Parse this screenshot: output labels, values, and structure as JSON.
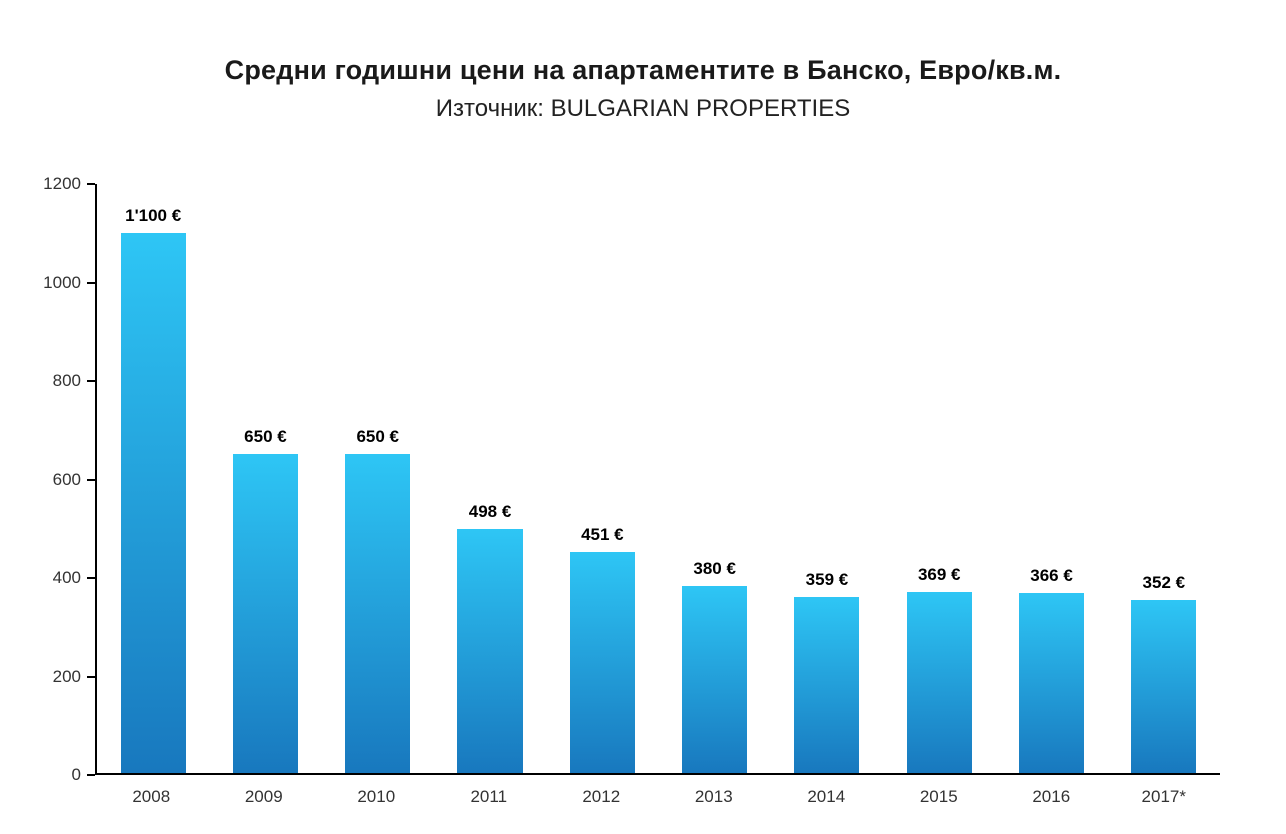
{
  "chart_data": {
    "type": "bar",
    "title": "Средни годишни цени на апартаментите в Банско, Евро/кв.м.",
    "subtitle": "Източник: BULGARIAN PROPERTIES",
    "categories": [
      "2008",
      "2009",
      "2010",
      "2011",
      "2012",
      "2013",
      "2014",
      "2015",
      "2016",
      "2017*"
    ],
    "values": [
      1100,
      650,
      650,
      498,
      451,
      380,
      359,
      369,
      366,
      352
    ],
    "value_labels": [
      "1'100 €",
      "650 €",
      "650 €",
      "498 €",
      "451 €",
      "380 €",
      "359 €",
      "369 €",
      "366 €",
      "352 €"
    ],
    "xlabel": "",
    "ylabel": "",
    "ylim": [
      0,
      1200
    ],
    "yticks": [
      0,
      200,
      400,
      600,
      800,
      1000,
      1200
    ],
    "grid": false,
    "legend": false,
    "colors": {
      "bar_gradient_top": "#2ec6f5",
      "bar_gradient_bottom": "#1878be",
      "axis": "#000000",
      "tick_text": "#333333",
      "title_text": "#1a1a1a"
    }
  }
}
